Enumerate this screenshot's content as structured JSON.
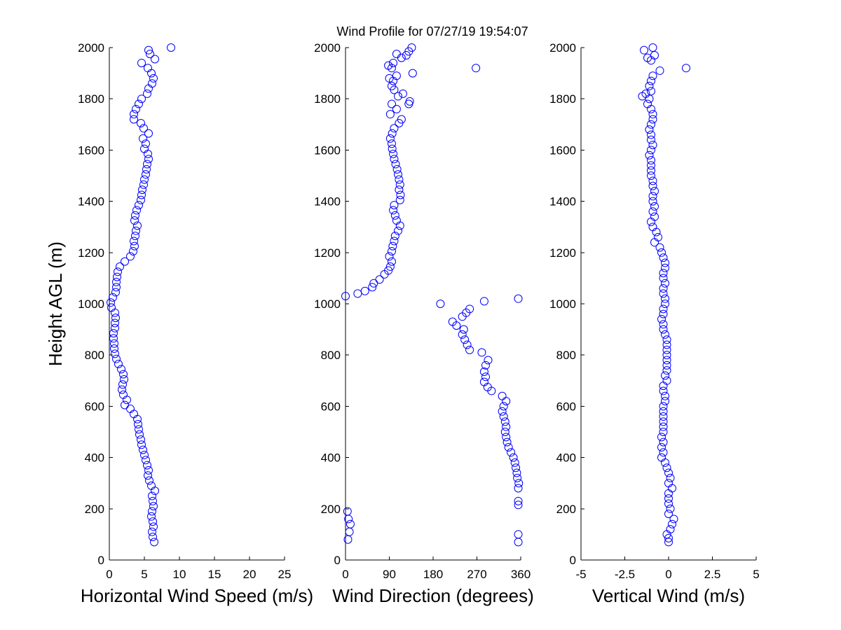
{
  "title": "Wind Profile for  07/27/19 19:54:07",
  "colors": {
    "marker": "#0000ff",
    "axis": "#000000",
    "background": "#ffffff"
  },
  "chart_data": [
    {
      "type": "scatter",
      "name": "speed",
      "xlabel": "Horizontal Wind Speed (m/s)",
      "ylabel": "Height AGL (m)",
      "xlim": [
        0,
        25
      ],
      "ylim": [
        0,
        2000
      ],
      "xticks": [
        "0",
        "5",
        "10",
        "15",
        "20",
        "25"
      ],
      "yticks": [
        "0",
        "200",
        "400",
        "600",
        "800",
        "1000",
        "1200",
        "1400",
        "1600",
        "1800",
        "2000"
      ],
      "grid": false,
      "points": [
        [
          6.4,
          70
        ],
        [
          6.2,
          90
        ],
        [
          6.1,
          110
        ],
        [
          6.3,
          130
        ],
        [
          6.2,
          150
        ],
        [
          6.0,
          170
        ],
        [
          6.1,
          190
        ],
        [
          6.3,
          210
        ],
        [
          6.2,
          230
        ],
        [
          6.1,
          250
        ],
        [
          6.5,
          270
        ],
        [
          6.0,
          290
        ],
        [
          5.7,
          310
        ],
        [
          5.5,
          330
        ],
        [
          5.6,
          350
        ],
        [
          5.4,
          370
        ],
        [
          5.2,
          390
        ],
        [
          5.0,
          410
        ],
        [
          4.8,
          430
        ],
        [
          4.6,
          450
        ],
        [
          4.5,
          470
        ],
        [
          4.3,
          490
        ],
        [
          4.2,
          510
        ],
        [
          4.1,
          530
        ],
        [
          4.0,
          550
        ],
        [
          3.5,
          570
        ],
        [
          3.0,
          590
        ],
        [
          2.2,
          605
        ],
        [
          2.5,
          625
        ],
        [
          2.0,
          645
        ],
        [
          1.8,
          665
        ],
        [
          1.9,
          685
        ],
        [
          2.1,
          705
        ],
        [
          2.0,
          725
        ],
        [
          1.7,
          745
        ],
        [
          1.3,
          765
        ],
        [
          1.0,
          785
        ],
        [
          0.8,
          805
        ],
        [
          0.7,
          825
        ],
        [
          0.7,
          845
        ],
        [
          0.6,
          865
        ],
        [
          0.6,
          885
        ],
        [
          0.8,
          905
        ],
        [
          0.8,
          925
        ],
        [
          0.9,
          945
        ],
        [
          0.8,
          965
        ],
        [
          0.3,
          985
        ],
        [
          0.2,
          1005
        ],
        [
          0.5,
          1025
        ],
        [
          0.9,
          1045
        ],
        [
          1.0,
          1065
        ],
        [
          1.0,
          1085
        ],
        [
          1.1,
          1105
        ],
        [
          1.2,
          1125
        ],
        [
          1.5,
          1145
        ],
        [
          2.2,
          1165
        ],
        [
          3.0,
          1185
        ],
        [
          3.4,
          1205
        ],
        [
          3.6,
          1225
        ],
        [
          3.5,
          1245
        ],
        [
          3.7,
          1265
        ],
        [
          3.8,
          1285
        ],
        [
          4.0,
          1305
        ],
        [
          3.6,
          1325
        ],
        [
          3.7,
          1345
        ],
        [
          3.9,
          1365
        ],
        [
          4.2,
          1385
        ],
        [
          4.5,
          1405
        ],
        [
          4.6,
          1425
        ],
        [
          4.7,
          1445
        ],
        [
          4.9,
          1465
        ],
        [
          5.0,
          1485
        ],
        [
          5.2,
          1505
        ],
        [
          5.3,
          1525
        ],
        [
          5.4,
          1545
        ],
        [
          5.6,
          1565
        ],
        [
          5.5,
          1585
        ],
        [
          5.0,
          1605
        ],
        [
          5.2,
          1625
        ],
        [
          4.8,
          1645
        ],
        [
          5.6,
          1665
        ],
        [
          4.9,
          1685
        ],
        [
          4.5,
          1705
        ],
        [
          3.5,
          1720
        ],
        [
          3.5,
          1740
        ],
        [
          3.8,
          1760
        ],
        [
          4.2,
          1780
        ],
        [
          4.6,
          1800
        ],
        [
          5.4,
          1820
        ],
        [
          5.6,
          1840
        ],
        [
          6.1,
          1860
        ],
        [
          6.3,
          1880
        ],
        [
          6.0,
          1900
        ],
        [
          5.5,
          1920
        ],
        [
          4.6,
          1940
        ],
        [
          6.5,
          1955
        ],
        [
          5.8,
          1975
        ],
        [
          5.6,
          1990
        ],
        [
          8.8,
          2000
        ]
      ]
    },
    {
      "type": "scatter",
      "name": "direction",
      "xlabel": "Wind Direction (degrees)",
      "ylabel": "",
      "xlim": [
        0,
        360
      ],
      "ylim": [
        0,
        2000
      ],
      "xticks": [
        "0",
        "90",
        "180",
        "270",
        "360"
      ],
      "yticks": [
        "0",
        "200",
        "400",
        "600",
        "800",
        "1000",
        "1200",
        "1400",
        "1600",
        "1800",
        "2000"
      ],
      "grid": false,
      "points": [
        [
          355,
          70
        ],
        [
          355,
          100
        ],
        [
          5,
          80
        ],
        [
          8,
          110
        ],
        [
          10,
          140
        ],
        [
          6,
          160
        ],
        [
          4,
          190
        ],
        [
          355,
          215
        ],
        [
          355,
          230
        ],
        [
          355,
          280
        ],
        [
          356,
          300
        ],
        [
          353,
          320
        ],
        [
          352,
          340
        ],
        [
          350,
          360
        ],
        [
          348,
          380
        ],
        [
          345,
          400
        ],
        [
          340,
          420
        ],
        [
          335,
          440
        ],
        [
          332,
          460
        ],
        [
          330,
          480
        ],
        [
          328,
          500
        ],
        [
          330,
          520
        ],
        [
          328,
          540
        ],
        [
          325,
          560
        ],
        [
          322,
          580
        ],
        [
          325,
          600
        ],
        [
          330,
          620
        ],
        [
          322,
          640
        ],
        [
          300,
          660
        ],
        [
          292,
          675
        ],
        [
          285,
          695
        ],
        [
          288,
          715
        ],
        [
          285,
          735
        ],
        [
          288,
          760
        ],
        [
          293,
          780
        ],
        [
          280,
          810
        ],
        [
          255,
          820
        ],
        [
          250,
          840
        ],
        [
          245,
          860
        ],
        [
          240,
          880
        ],
        [
          243,
          900
        ],
        [
          228,
          915
        ],
        [
          220,
          930
        ],
        [
          240,
          950
        ],
        [
          248,
          965
        ],
        [
          255,
          980
        ],
        [
          195,
          1000
        ],
        [
          285,
          1010
        ],
        [
          355,
          1020
        ],
        [
          0,
          1030
        ],
        [
          25,
          1040
        ],
        [
          40,
          1050
        ],
        [
          55,
          1065
        ],
        [
          58,
          1080
        ],
        [
          70,
          1095
        ],
        [
          80,
          1115
        ],
        [
          88,
          1130
        ],
        [
          92,
          1145
        ],
        [
          95,
          1165
        ],
        [
          90,
          1185
        ],
        [
          95,
          1205
        ],
        [
          97,
          1225
        ],
        [
          100,
          1245
        ],
        [
          102,
          1265
        ],
        [
          108,
          1285
        ],
        [
          112,
          1305
        ],
        [
          105,
          1325
        ],
        [
          102,
          1345
        ],
        [
          98,
          1365
        ],
        [
          100,
          1385
        ],
        [
          112,
          1405
        ],
        [
          113,
          1425
        ],
        [
          110,
          1445
        ],
        [
          112,
          1465
        ],
        [
          110,
          1485
        ],
        [
          108,
          1505
        ],
        [
          106,
          1525
        ],
        [
          103,
          1545
        ],
        [
          100,
          1565
        ],
        [
          98,
          1585
        ],
        [
          96,
          1605
        ],
        [
          95,
          1625
        ],
        [
          92,
          1645
        ],
        [
          96,
          1665
        ],
        [
          100,
          1685
        ],
        [
          110,
          1705
        ],
        [
          115,
          1720
        ],
        [
          92,
          1740
        ],
        [
          105,
          1760
        ],
        [
          95,
          1780
        ],
        [
          130,
          1780
        ],
        [
          132,
          1790
        ],
        [
          108,
          1810
        ],
        [
          118,
          1820
        ],
        [
          100,
          1835
        ],
        [
          95,
          1850
        ],
        [
          98,
          1870
        ],
        [
          105,
          1890
        ],
        [
          90,
          1880
        ],
        [
          95,
          1920
        ],
        [
          88,
          1930
        ],
        [
          98,
          1940
        ],
        [
          138,
          1900
        ],
        [
          268,
          1920
        ],
        [
          115,
          1960
        ],
        [
          105,
          1975
        ],
        [
          125,
          1970
        ],
        [
          130,
          1985
        ],
        [
          136,
          2000
        ]
      ]
    },
    {
      "type": "scatter",
      "name": "vertical",
      "xlabel": "Vertical Wind (m/s)",
      "ylabel": "",
      "xlim": [
        -5,
        5
      ],
      "ylim": [
        0,
        2000
      ],
      "xticks": [
        "-5",
        "-2.5",
        "0",
        "2.5",
        "5"
      ],
      "yticks": [
        "0",
        "200",
        "400",
        "600",
        "800",
        "1000",
        "1200",
        "1400",
        "1600",
        "1800",
        "2000"
      ],
      "grid": false,
      "points": [
        [
          0.0,
          70
        ],
        [
          0.0,
          85
        ],
        [
          -0.1,
          100
        ],
        [
          0.1,
          120
        ],
        [
          0.2,
          140
        ],
        [
          0.3,
          160
        ],
        [
          0.0,
          180
        ],
        [
          0.1,
          200
        ],
        [
          0.0,
          220
        ],
        [
          0.0,
          240
        ],
        [
          0.0,
          260
        ],
        [
          0.2,
          280
        ],
        [
          0.0,
          300
        ],
        [
          0.1,
          320
        ],
        [
          0.0,
          340
        ],
        [
          -0.1,
          360
        ],
        [
          -0.2,
          380
        ],
        [
          -0.4,
          400
        ],
        [
          -0.3,
          420
        ],
        [
          -0.4,
          440
        ],
        [
          -0.3,
          460
        ],
        [
          -0.4,
          480
        ],
        [
          -0.3,
          500
        ],
        [
          -0.3,
          520
        ],
        [
          -0.3,
          540
        ],
        [
          -0.3,
          560
        ],
        [
          -0.3,
          580
        ],
        [
          -0.3,
          600
        ],
        [
          -0.2,
          620
        ],
        [
          -0.2,
          640
        ],
        [
          -0.3,
          660
        ],
        [
          -0.3,
          680
        ],
        [
          -0.1,
          700
        ],
        [
          -0.2,
          720
        ],
        [
          -0.1,
          740
        ],
        [
          -0.1,
          760
        ],
        [
          -0.1,
          780
        ],
        [
          -0.1,
          800
        ],
        [
          -0.1,
          820
        ],
        [
          -0.1,
          840
        ],
        [
          -0.1,
          860
        ],
        [
          -0.2,
          880
        ],
        [
          -0.3,
          900
        ],
        [
          -0.3,
          920
        ],
        [
          -0.4,
          940
        ],
        [
          -0.3,
          960
        ],
        [
          -0.3,
          980
        ],
        [
          -0.2,
          1000
        ],
        [
          -0.2,
          1020
        ],
        [
          -0.3,
          1040
        ],
        [
          -0.3,
          1060
        ],
        [
          -0.2,
          1080
        ],
        [
          -0.3,
          1100
        ],
        [
          -0.3,
          1120
        ],
        [
          -0.2,
          1140
        ],
        [
          -0.2,
          1160
        ],
        [
          -0.3,
          1180
        ],
        [
          -0.4,
          1200
        ],
        [
          -0.5,
          1220
        ],
        [
          -0.8,
          1240
        ],
        [
          -0.6,
          1260
        ],
        [
          -0.7,
          1280
        ],
        [
          -0.9,
          1300
        ],
        [
          -1.0,
          1320
        ],
        [
          -0.8,
          1340
        ],
        [
          -0.9,
          1360
        ],
        [
          -0.8,
          1380
        ],
        [
          -0.9,
          1400
        ],
        [
          -0.9,
          1420
        ],
        [
          -0.8,
          1440
        ],
        [
          -0.9,
          1460
        ],
        [
          -0.9,
          1480
        ],
        [
          -1.0,
          1500
        ],
        [
          -1.0,
          1520
        ],
        [
          -1.0,
          1540
        ],
        [
          -1.0,
          1560
        ],
        [
          -1.1,
          1580
        ],
        [
          -1.0,
          1600
        ],
        [
          -0.9,
          1620
        ],
        [
          -1.0,
          1640
        ],
        [
          -1.0,
          1660
        ],
        [
          -1.1,
          1680
        ],
        [
          -1.0,
          1700
        ],
        [
          -0.9,
          1720
        ],
        [
          -0.9,
          1740
        ],
        [
          -1.0,
          1760
        ],
        [
          -1.2,
          1780
        ],
        [
          -1.1,
          1800
        ],
        [
          -1.5,
          1810
        ],
        [
          -1.3,
          1820
        ],
        [
          -1.0,
          1830
        ],
        [
          -1.1,
          1850
        ],
        [
          -1.0,
          1870
        ],
        [
          -0.9,
          1890
        ],
        [
          -0.5,
          1910
        ],
        [
          1.0,
          1920
        ],
        [
          -1.0,
          1950
        ],
        [
          -1.2,
          1960
        ],
        [
          -0.8,
          1970
        ],
        [
          -1.4,
          1990
        ],
        [
          -0.9,
          2000
        ]
      ]
    }
  ]
}
